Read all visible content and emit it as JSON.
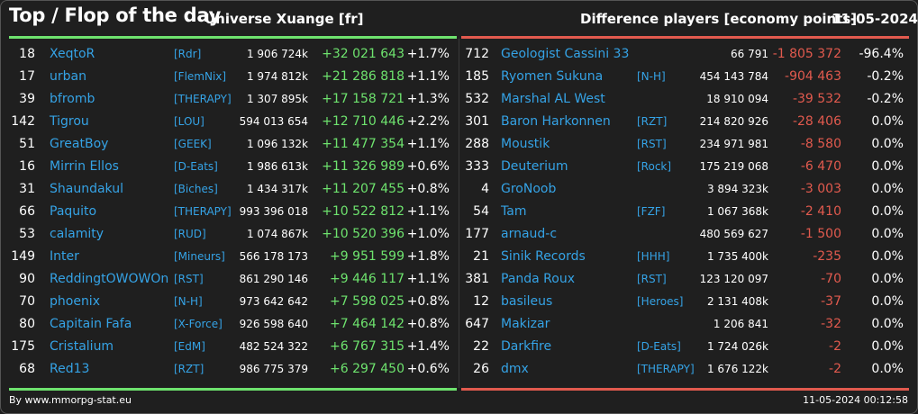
{
  "header": {
    "title": "Top / Flop of the day",
    "universe": "Universe Xuange [fr]",
    "subtitle": "Difference players [economy points]",
    "date": "11-05-2024"
  },
  "colors": {
    "gain": "#6ee36e",
    "loss": "#e25a4e",
    "link": "#35a3e6",
    "background": "#1f1f1f"
  },
  "top": [
    {
      "rank": "18",
      "name": "XeqtoR",
      "alliance": "[Rdr]",
      "points": "1 906 724k",
      "diff": "+32 021 643",
      "pct": "+1.7%"
    },
    {
      "rank": "17",
      "name": "urban",
      "alliance": "[FlemNix]",
      "points": "1 974 812k",
      "diff": "+21 286 818",
      "pct": "+1.1%"
    },
    {
      "rank": "39",
      "name": "bfromb",
      "alliance": "[THERAPY]",
      "points": "1 307 895k",
      "diff": "+17 158 721",
      "pct": "+1.3%"
    },
    {
      "rank": "142",
      "name": "Tigrou",
      "alliance": "[LOU]",
      "points": "594 013 654",
      "diff": "+12 710 446",
      "pct": "+2.2%"
    },
    {
      "rank": "51",
      "name": "GreatBoy",
      "alliance": "[GEEK]",
      "points": "1 096 132k",
      "diff": "+11 477 354",
      "pct": "+1.1%"
    },
    {
      "rank": "16",
      "name": "Mirrin Ellos",
      "alliance": "[D-Eats]",
      "points": "1 986 613k",
      "diff": "+11 326 989",
      "pct": "+0.6%"
    },
    {
      "rank": "31",
      "name": "Shaundakul",
      "alliance": "[Biches]",
      "points": "1 434 317k",
      "diff": "+11 207 455",
      "pct": "+0.8%"
    },
    {
      "rank": "66",
      "name": "Paquito",
      "alliance": "[THERAPY]",
      "points": "993 396 018",
      "diff": "+10 522 812",
      "pct": "+1.1%"
    },
    {
      "rank": "53",
      "name": "calamity",
      "alliance": "[RUD]",
      "points": "1 074 867k",
      "diff": "+10 520 396",
      "pct": "+1.0%"
    },
    {
      "rank": "149",
      "name": "Inter",
      "alliance": "[Mineurs]",
      "points": "566 178 173",
      "diff": "+9 951 599",
      "pct": "+1.8%"
    },
    {
      "rank": "90",
      "name": "ReddingtOWOWOn",
      "alliance": "[RST]",
      "points": "861 290 146",
      "diff": "+9 446 117",
      "pct": "+1.1%"
    },
    {
      "rank": "70",
      "name": "phoenix",
      "alliance": "[N-H]",
      "points": "973 642 642",
      "diff": "+7 598 025",
      "pct": "+0.8%"
    },
    {
      "rank": "80",
      "name": "Capitain Fafa",
      "alliance": "[X-Force]",
      "points": "926 598 640",
      "diff": "+7 464 142",
      "pct": "+0.8%"
    },
    {
      "rank": "175",
      "name": "Cristalium",
      "alliance": "[EdM]",
      "points": "482 524 322",
      "diff": "+6 767 315",
      "pct": "+1.4%"
    },
    {
      "rank": "68",
      "name": "Red13",
      "alliance": "[RZT]",
      "points": "986 775 379",
      "diff": "+6 297 450",
      "pct": "+0.6%"
    }
  ],
  "flop": [
    {
      "rank": "712",
      "name": "Geologist Cassini 33",
      "alliance": "",
      "points": "66 791",
      "diff": "-1 805 372",
      "pct": "-96.4%"
    },
    {
      "rank": "185",
      "name": "Ryomen Sukuna",
      "alliance": "[N-H]",
      "points": "454 143 784",
      "diff": "-904 463",
      "pct": "-0.2%"
    },
    {
      "rank": "532",
      "name": "Marshal AL West",
      "alliance": "",
      "points": "18 910 094",
      "diff": "-39 532",
      "pct": "-0.2%"
    },
    {
      "rank": "301",
      "name": "Baron Harkonnen",
      "alliance": "[RZT]",
      "points": "214 820 926",
      "diff": "-28 406",
      "pct": "0.0%"
    },
    {
      "rank": "288",
      "name": "Moustik",
      "alliance": "[RST]",
      "points": "234 971 981",
      "diff": "-8 580",
      "pct": "0.0%"
    },
    {
      "rank": "333",
      "name": "Deuterium",
      "alliance": "[Rock]",
      "points": "175 219 068",
      "diff": "-6 470",
      "pct": "0.0%"
    },
    {
      "rank": "4",
      "name": "GroNoob",
      "alliance": "",
      "points": "3 894 323k",
      "diff": "-3 003",
      "pct": "0.0%"
    },
    {
      "rank": "54",
      "name": "Tam",
      "alliance": "[FZF]",
      "points": "1 067 368k",
      "diff": "-2 410",
      "pct": "0.0%"
    },
    {
      "rank": "177",
      "name": "arnaud-c",
      "alliance": "",
      "points": "480 569 627",
      "diff": "-1 500",
      "pct": "0.0%"
    },
    {
      "rank": "21",
      "name": "Sinik Records",
      "alliance": "[HHH]",
      "points": "1 735 400k",
      "diff": "-235",
      "pct": "0.0%"
    },
    {
      "rank": "381",
      "name": "Panda Roux",
      "alliance": "[RST]",
      "points": "123 120 097",
      "diff": "-70",
      "pct": "0.0%"
    },
    {
      "rank": "12",
      "name": "basileus",
      "alliance": "[Heroes]",
      "points": "2 131 408k",
      "diff": "-37",
      "pct": "0.0%"
    },
    {
      "rank": "647",
      "name": "Makizar",
      "alliance": "",
      "points": "1 206 841",
      "diff": "-32",
      "pct": "0.0%"
    },
    {
      "rank": "22",
      "name": "Darkfire",
      "alliance": "[D-Eats]",
      "points": "1 724 026k",
      "diff": "-2",
      "pct": "0.0%"
    },
    {
      "rank": "26",
      "name": "dmx",
      "alliance": "[THERAPY]",
      "points": "1 676 122k",
      "diff": "-2",
      "pct": "0.0%"
    }
  ],
  "footer": {
    "credit": "By www.mmorpg-stat.eu",
    "timestamp": "11-05-2024 00:12:58"
  }
}
